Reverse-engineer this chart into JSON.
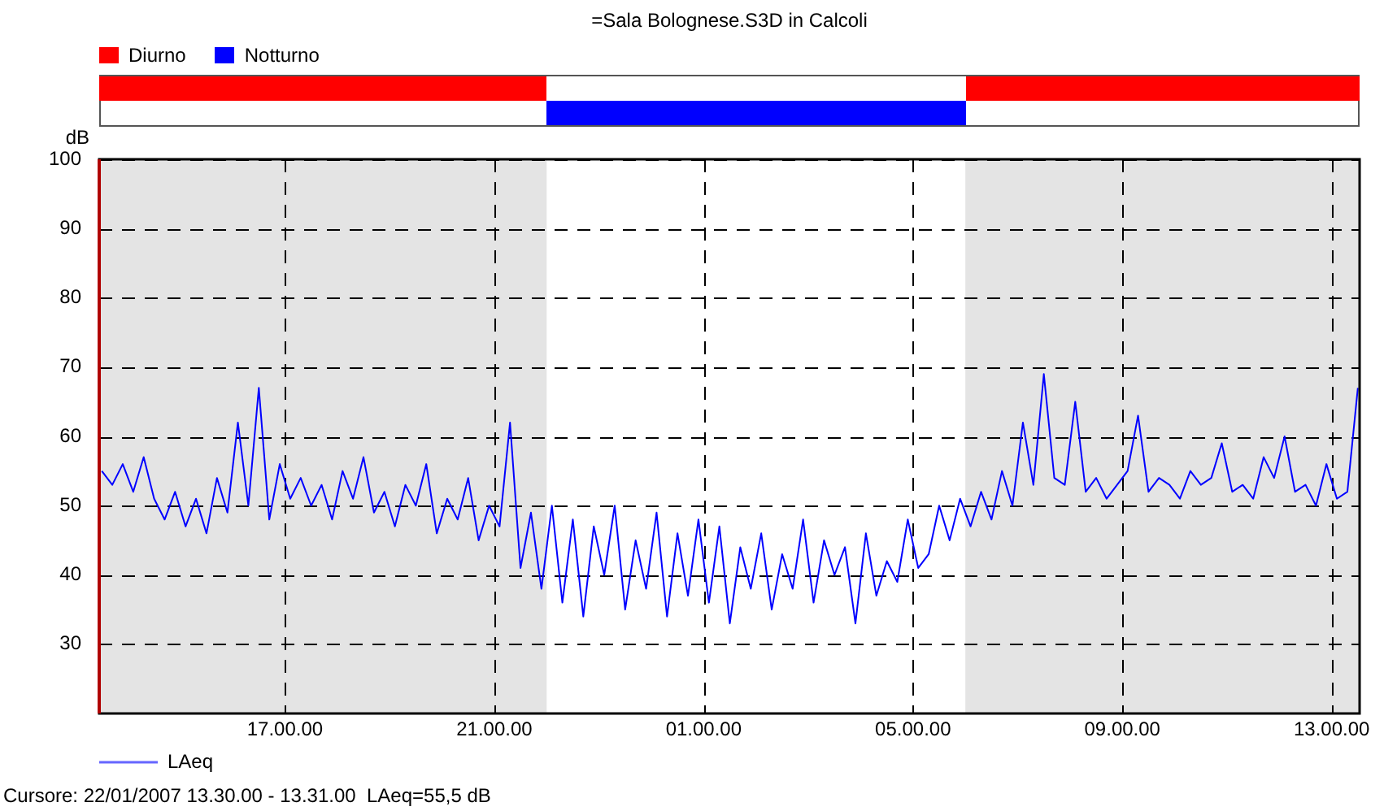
{
  "chart_data": {
    "type": "line",
    "title": "=Sala Bolognese.S3D in Calcoli",
    "ylabel": "dB",
    "annotations": [
      "Diurno",
      "Notturno",
      "Cursore: 22/01/2007 13.30.00 - 13.31.00  LAeq=55,5 dB"
    ],
    "x": [
      "2007-01-21T13:30",
      "2007-01-21T13:42",
      "2007-01-21T13:54",
      "2007-01-21T14:06",
      "2007-01-21T14:18",
      "2007-01-21T14:30",
      "2007-01-21T14:42",
      "2007-01-21T14:54",
      "2007-01-21T15:06",
      "2007-01-21T15:18",
      "2007-01-21T15:30",
      "2007-01-21T15:42",
      "2007-01-21T15:54",
      "2007-01-21T16:06",
      "2007-01-21T16:18",
      "2007-01-21T16:30",
      "2007-01-21T16:42",
      "2007-01-21T16:54",
      "2007-01-21T17:06",
      "2007-01-21T17:18",
      "2007-01-21T17:30",
      "2007-01-21T17:42",
      "2007-01-21T17:54",
      "2007-01-21T18:06",
      "2007-01-21T18:18",
      "2007-01-21T18:30",
      "2007-01-21T18:42",
      "2007-01-21T18:54",
      "2007-01-21T19:06",
      "2007-01-21T19:18",
      "2007-01-21T19:30",
      "2007-01-21T19:42",
      "2007-01-21T19:54",
      "2007-01-21T20:06",
      "2007-01-21T20:18",
      "2007-01-21T20:30",
      "2007-01-21T20:42",
      "2007-01-21T20:54",
      "2007-01-21T21:06",
      "2007-01-21T21:18",
      "2007-01-21T21:30",
      "2007-01-21T21:42",
      "2007-01-21T21:54",
      "2007-01-21T22:06",
      "2007-01-21T22:18",
      "2007-01-21T22:30",
      "2007-01-21T22:42",
      "2007-01-21T22:54",
      "2007-01-21T23:06",
      "2007-01-21T23:18",
      "2007-01-21T23:30",
      "2007-01-21T23:42",
      "2007-01-21T23:54",
      "2007-01-22T00:06",
      "2007-01-22T00:18",
      "2007-01-22T00:30",
      "2007-01-22T00:42",
      "2007-01-22T00:54",
      "2007-01-22T01:06",
      "2007-01-22T01:18",
      "2007-01-22T01:30",
      "2007-01-22T01:42",
      "2007-01-22T01:54",
      "2007-01-22T02:06",
      "2007-01-22T02:18",
      "2007-01-22T02:30",
      "2007-01-22T02:42",
      "2007-01-22T02:54",
      "2007-01-22T03:06",
      "2007-01-22T03:18",
      "2007-01-22T03:30",
      "2007-01-22T03:42",
      "2007-01-22T03:54",
      "2007-01-22T04:06",
      "2007-01-22T04:18",
      "2007-01-22T04:30",
      "2007-01-22T04:42",
      "2007-01-22T04:54",
      "2007-01-22T05:06",
      "2007-01-22T05:18",
      "2007-01-22T05:30",
      "2007-01-22T05:42",
      "2007-01-22T05:54",
      "2007-01-22T06:06",
      "2007-01-22T06:18",
      "2007-01-22T06:30",
      "2007-01-22T06:42",
      "2007-01-22T06:54",
      "2007-01-22T07:06",
      "2007-01-22T07:18",
      "2007-01-22T07:30",
      "2007-01-22T07:42",
      "2007-01-22T07:54",
      "2007-01-22T08:06",
      "2007-01-22T08:18",
      "2007-01-22T08:30",
      "2007-01-22T08:42",
      "2007-01-22T08:54",
      "2007-01-22T09:06",
      "2007-01-22T09:18",
      "2007-01-22T09:30",
      "2007-01-22T09:42",
      "2007-01-22T09:54",
      "2007-01-22T10:06",
      "2007-01-22T10:18",
      "2007-01-22T10:30",
      "2007-01-22T10:42",
      "2007-01-22T10:54",
      "2007-01-22T11:06",
      "2007-01-22T11:18",
      "2007-01-22T11:30",
      "2007-01-22T11:42",
      "2007-01-22T11:54",
      "2007-01-22T12:06",
      "2007-01-22T12:18",
      "2007-01-22T12:30",
      "2007-01-22T12:42",
      "2007-01-22T12:54",
      "2007-01-22T13:06",
      "2007-01-22T13:18",
      "2007-01-22T13:30"
    ],
    "series": [
      {
        "name": "LAeq",
        "color": "#0000ff",
        "values": [
          55,
          53,
          56,
          52,
          57,
          51,
          48,
          52,
          47,
          51,
          46,
          54,
          49,
          62,
          50,
          67,
          48,
          56,
          51,
          54,
          50,
          53,
          48,
          55,
          51,
          57,
          49,
          52,
          47,
          53,
          50,
          56,
          46,
          51,
          48,
          54,
          45,
          50,
          47,
          62,
          41,
          49,
          38,
          50,
          36,
          48,
          34,
          47,
          40,
          50,
          35,
          45,
          38,
          49,
          34,
          46,
          37,
          48,
          36,
          47,
          33,
          44,
          38,
          46,
          35,
          43,
          38,
          48,
          36,
          45,
          40,
          44,
          33,
          46,
          37,
          42,
          39,
          48,
          41,
          43,
          50,
          45,
          51,
          47,
          52,
          48,
          55,
          50,
          62,
          53,
          69,
          54,
          53,
          65,
          52,
          54,
          51,
          53,
          55,
          63,
          52,
          54,
          53,
          51,
          55,
          53,
          54,
          59,
          52,
          53,
          51,
          57,
          54,
          60,
          52,
          53,
          50,
          56,
          51,
          52,
          67
        ]
      }
    ],
    "xlim": [
      "2007-01-21T13:27",
      "2007-01-22T13:32"
    ],
    "xticks": [
      {
        "value": "2007-01-21T17:00",
        "label": "17.00.00"
      },
      {
        "value": "2007-01-21T21:00",
        "label": "21.00.00"
      },
      {
        "value": "2007-01-22T01:00",
        "label": "01.00.00"
      },
      {
        "value": "2007-01-22T05:00",
        "label": "05.00.00"
      },
      {
        "value": "2007-01-22T09:00",
        "label": "09.00.00"
      },
      {
        "value": "2007-01-22T13:00",
        "label": "13.00.00"
      }
    ],
    "ylim": [
      20,
      100
    ],
    "yticks": [
      30,
      40,
      50,
      60,
      70,
      80,
      90,
      100
    ],
    "bands": [
      {
        "axis": "x",
        "from": "2007-01-21T13:27",
        "to": "2007-01-21T22:00",
        "color": "#e4e4e4"
      },
      {
        "axis": "x",
        "from": "2007-01-22T06:00",
        "to": "2007-01-22T13:32",
        "color": "#e4e4e4"
      }
    ],
    "grid": true,
    "legend": "bottom left",
    "marker": "none",
    "line_style": "solid"
  }
}
